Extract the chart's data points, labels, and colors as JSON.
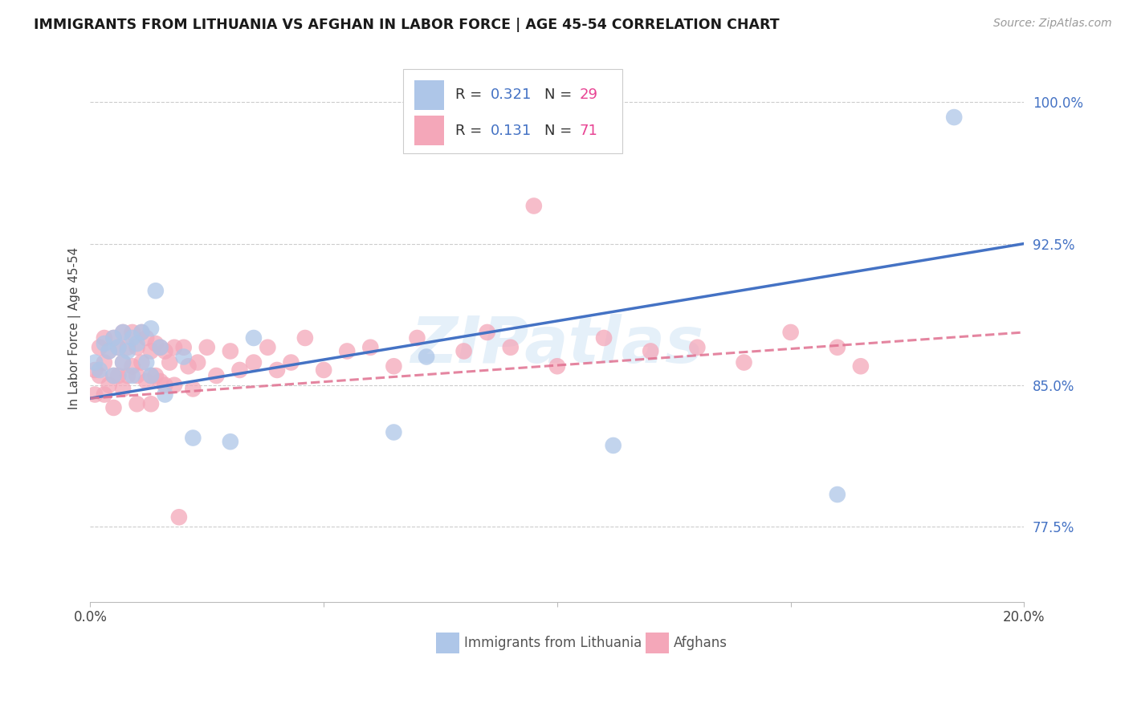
{
  "title": "IMMIGRANTS FROM LITHUANIA VS AFGHAN IN LABOR FORCE | AGE 45-54 CORRELATION CHART",
  "source": "Source: ZipAtlas.com",
  "ylabel": "In Labor Force | Age 45-54",
  "xlim": [
    0.0,
    0.2
  ],
  "ylim": [
    0.735,
    1.025
  ],
  "xticks": [
    0.0,
    0.05,
    0.1,
    0.15,
    0.2
  ],
  "xticklabels": [
    "0.0%",
    "",
    "",
    "",
    "20.0%"
  ],
  "yticks": [
    0.775,
    0.85,
    0.925,
    1.0
  ],
  "yticklabels": [
    "77.5%",
    "85.0%",
    "92.5%",
    "100.0%"
  ],
  "color_lithuania": "#aec6e8",
  "color_afghan": "#f4a7b9",
  "color_blue": "#4472c4",
  "color_pink_n": "#e84393",
  "color_pink_line": "#e07090",
  "watermark": "ZIPatlas",
  "lith_trend_x": [
    0.0,
    0.2
  ],
  "lith_trend_y": [
    0.843,
    0.925
  ],
  "afghan_trend_x": [
    0.0,
    0.2
  ],
  "afghan_trend_y": [
    0.843,
    0.878
  ],
  "lithuania_x": [
    0.001,
    0.002,
    0.003,
    0.004,
    0.005,
    0.005,
    0.006,
    0.007,
    0.007,
    0.008,
    0.009,
    0.009,
    0.01,
    0.011,
    0.012,
    0.013,
    0.013,
    0.014,
    0.015,
    0.016,
    0.02,
    0.022,
    0.03,
    0.035,
    0.065,
    0.072,
    0.112,
    0.16,
    0.185
  ],
  "lithuania_y": [
    0.862,
    0.858,
    0.872,
    0.868,
    0.875,
    0.855,
    0.87,
    0.862,
    0.878,
    0.868,
    0.875,
    0.855,
    0.872,
    0.878,
    0.862,
    0.88,
    0.855,
    0.9,
    0.87,
    0.845,
    0.865,
    0.822,
    0.82,
    0.875,
    0.825,
    0.865,
    0.818,
    0.792,
    0.992
  ],
  "afghan_x": [
    0.001,
    0.001,
    0.002,
    0.002,
    0.003,
    0.003,
    0.003,
    0.004,
    0.004,
    0.005,
    0.005,
    0.005,
    0.006,
    0.006,
    0.007,
    0.007,
    0.007,
    0.008,
    0.008,
    0.009,
    0.009,
    0.01,
    0.01,
    0.01,
    0.011,
    0.011,
    0.012,
    0.012,
    0.013,
    0.013,
    0.013,
    0.014,
    0.014,
    0.015,
    0.015,
    0.016,
    0.016,
    0.017,
    0.018,
    0.018,
    0.019,
    0.02,
    0.021,
    0.022,
    0.023,
    0.025,
    0.027,
    0.03,
    0.032,
    0.035,
    0.038,
    0.04,
    0.043,
    0.046,
    0.05,
    0.055,
    0.06,
    0.065,
    0.07,
    0.08,
    0.085,
    0.09,
    0.095,
    0.1,
    0.11,
    0.12,
    0.13,
    0.14,
    0.15,
    0.16,
    0.165
  ],
  "afghan_y": [
    0.858,
    0.845,
    0.87,
    0.855,
    0.875,
    0.862,
    0.845,
    0.868,
    0.85,
    0.875,
    0.855,
    0.838,
    0.87,
    0.855,
    0.878,
    0.862,
    0.848,
    0.87,
    0.855,
    0.878,
    0.86,
    0.87,
    0.855,
    0.84,
    0.878,
    0.862,
    0.875,
    0.852,
    0.868,
    0.855,
    0.84,
    0.872,
    0.855,
    0.87,
    0.852,
    0.868,
    0.85,
    0.862,
    0.87,
    0.85,
    0.78,
    0.87,
    0.86,
    0.848,
    0.862,
    0.87,
    0.855,
    0.868,
    0.858,
    0.862,
    0.87,
    0.858,
    0.862,
    0.875,
    0.858,
    0.868,
    0.87,
    0.86,
    0.875,
    0.868,
    0.878,
    0.87,
    0.945,
    0.86,
    0.875,
    0.868,
    0.87,
    0.862,
    0.878,
    0.87,
    0.86
  ],
  "bottom_legend_labels": [
    "Immigrants from Lithuania",
    "Afghans"
  ]
}
